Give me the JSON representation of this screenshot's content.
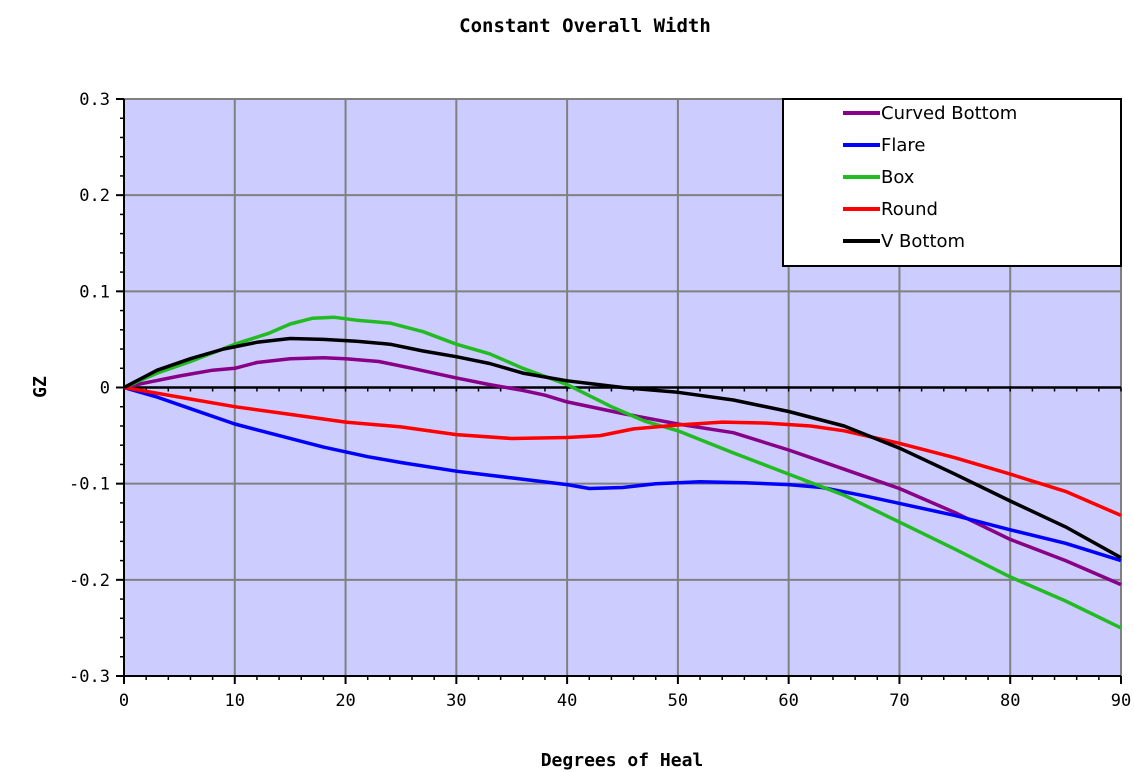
{
  "chart_data": {
    "type": "line",
    "title": "Constant Overall Width",
    "xlabel": "Degrees of Heal",
    "ylabel": "GZ",
    "xlim": [
      0,
      90
    ],
    "ylim": [
      -0.3,
      0.3
    ],
    "x_ticks": [
      0,
      10,
      20,
      30,
      40,
      50,
      60,
      70,
      80,
      90
    ],
    "x_tick_labels": [
      "0",
      "10",
      "20",
      "30",
      "40",
      "50",
      "60",
      "70",
      "80",
      "90"
    ],
    "y_ticks": [
      0.3,
      0.2,
      0.1,
      0,
      -0.1,
      -0.2,
      -0.3
    ],
    "y_tick_labels": [
      "0.3",
      "0.2",
      "0.1",
      "0",
      "-0.1",
      "-0.2",
      "-0.3"
    ],
    "grid": true,
    "legend_position": "top-right",
    "colors": {
      "plot_background": "#ccccff",
      "grid": "#808080",
      "zero_line": "#000000"
    },
    "series": [
      {
        "name": "Curved Bottom",
        "color": "#880088",
        "points": [
          [
            0,
            0
          ],
          [
            2,
            0.005
          ],
          [
            5,
            0.012
          ],
          [
            8,
            0.018
          ],
          [
            10,
            0.02
          ],
          [
            12,
            0.026
          ],
          [
            15,
            0.03
          ],
          [
            18,
            0.031
          ],
          [
            20,
            0.03
          ],
          [
            23,
            0.027
          ],
          [
            26,
            0.02
          ],
          [
            30,
            0.01
          ],
          [
            33,
            0.003
          ],
          [
            36,
            -0.003
          ],
          [
            38,
            -0.008
          ],
          [
            40,
            -0.015
          ],
          [
            45,
            -0.027
          ],
          [
            50,
            -0.038
          ],
          [
            55,
            -0.047
          ],
          [
            60,
            -0.065
          ],
          [
            65,
            -0.085
          ],
          [
            70,
            -0.105
          ],
          [
            75,
            -0.13
          ],
          [
            80,
            -0.158
          ],
          [
            85,
            -0.18
          ],
          [
            90,
            -0.205
          ]
        ]
      },
      {
        "name": "Flare",
        "color": "#0000ff",
        "points": [
          [
            0,
            0
          ],
          [
            3,
            -0.01
          ],
          [
            6,
            -0.022
          ],
          [
            10,
            -0.038
          ],
          [
            14,
            -0.05
          ],
          [
            18,
            -0.062
          ],
          [
            22,
            -0.072
          ],
          [
            25,
            -0.078
          ],
          [
            30,
            -0.087
          ],
          [
            35,
            -0.094
          ],
          [
            40,
            -0.101
          ],
          [
            42,
            -0.105
          ],
          [
            45,
            -0.104
          ],
          [
            48,
            -0.1
          ],
          [
            52,
            -0.098
          ],
          [
            56,
            -0.099
          ],
          [
            60,
            -0.101
          ],
          [
            63,
            -0.104
          ],
          [
            67,
            -0.113
          ],
          [
            71,
            -0.123
          ],
          [
            75,
            -0.133
          ],
          [
            80,
            -0.148
          ],
          [
            85,
            -0.162
          ],
          [
            90,
            -0.18
          ]
        ]
      },
      {
        "name": "Box",
        "color": "#22bb22",
        "points": [
          [
            0,
            0
          ],
          [
            3,
            0.015
          ],
          [
            6,
            0.027
          ],
          [
            10,
            0.045
          ],
          [
            13,
            0.056
          ],
          [
            15,
            0.066
          ],
          [
            17,
            0.072
          ],
          [
            19,
            0.073
          ],
          [
            21,
            0.07
          ],
          [
            24,
            0.067
          ],
          [
            27,
            0.058
          ],
          [
            30,
            0.045
          ],
          [
            33,
            0.035
          ],
          [
            36,
            0.02
          ],
          [
            40,
            0.003
          ],
          [
            44,
            -0.02
          ],
          [
            47,
            -0.035
          ],
          [
            50,
            -0.045
          ],
          [
            55,
            -0.068
          ],
          [
            60,
            -0.09
          ],
          [
            65,
            -0.112
          ],
          [
            70,
            -0.14
          ],
          [
            75,
            -0.168
          ],
          [
            80,
            -0.197
          ],
          [
            85,
            -0.222
          ],
          [
            90,
            -0.25
          ]
        ]
      },
      {
        "name": "Round",
        "color": "#ff0000",
        "points": [
          [
            0,
            0
          ],
          [
            5,
            -0.01
          ],
          [
            10,
            -0.02
          ],
          [
            15,
            -0.028
          ],
          [
            20,
            -0.036
          ],
          [
            25,
            -0.041
          ],
          [
            30,
            -0.049
          ],
          [
            35,
            -0.053
          ],
          [
            40,
            -0.052
          ],
          [
            43,
            -0.05
          ],
          [
            46,
            -0.043
          ],
          [
            50,
            -0.039
          ],
          [
            54,
            -0.036
          ],
          [
            58,
            -0.037
          ],
          [
            62,
            -0.04
          ],
          [
            65,
            -0.045
          ],
          [
            70,
            -0.058
          ],
          [
            75,
            -0.073
          ],
          [
            80,
            -0.09
          ],
          [
            85,
            -0.108
          ],
          [
            90,
            -0.133
          ]
        ]
      },
      {
        "name": "V Bottom",
        "color": "#000000",
        "points": [
          [
            0,
            0
          ],
          [
            3,
            0.018
          ],
          [
            6,
            0.03
          ],
          [
            9,
            0.04
          ],
          [
            12,
            0.047
          ],
          [
            15,
            0.051
          ],
          [
            18,
            0.05
          ],
          [
            21,
            0.048
          ],
          [
            24,
            0.045
          ],
          [
            27,
            0.038
          ],
          [
            30,
            0.032
          ],
          [
            33,
            0.025
          ],
          [
            36,
            0.015
          ],
          [
            40,
            0.007
          ],
          [
            45,
            0.0
          ],
          [
            50,
            -0.005
          ],
          [
            55,
            -0.013
          ],
          [
            60,
            -0.025
          ],
          [
            65,
            -0.04
          ],
          [
            70,
            -0.063
          ],
          [
            75,
            -0.09
          ],
          [
            80,
            -0.118
          ],
          [
            85,
            -0.145
          ],
          [
            90,
            -0.177
          ]
        ]
      }
    ]
  }
}
